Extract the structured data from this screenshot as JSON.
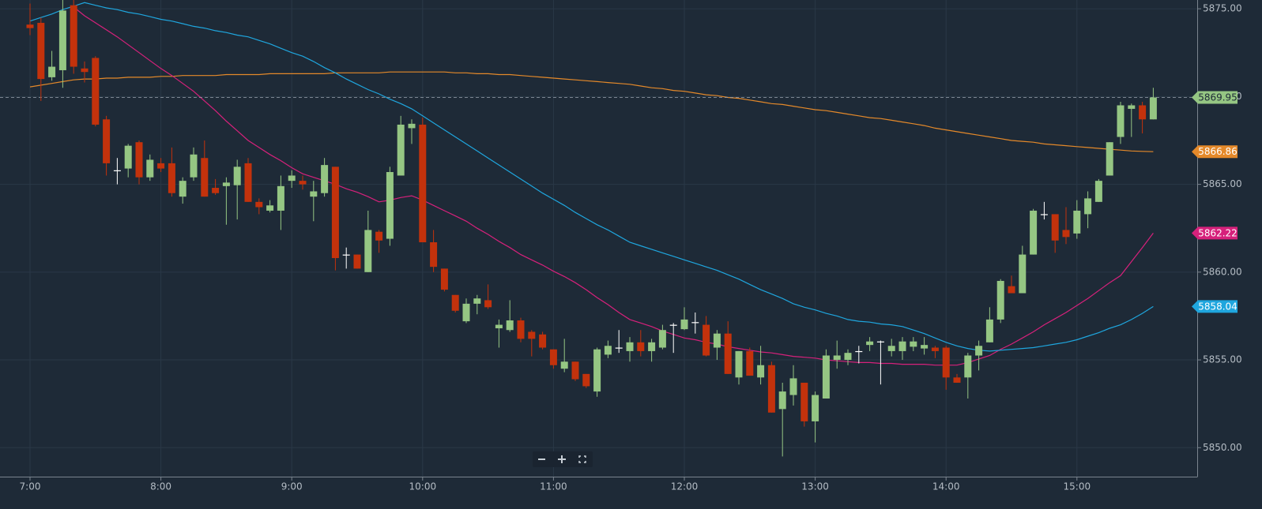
{
  "chart_data": {
    "type": "candlestick",
    "categories": [
      "7:00",
      null,
      null,
      null,
      null,
      null,
      null,
      null,
      null,
      null,
      null,
      null,
      "8:00",
      null,
      null,
      null,
      null,
      null,
      null,
      null,
      null,
      null,
      null,
      null,
      "9:00",
      null,
      null,
      null,
      null,
      null,
      null,
      null,
      null,
      null,
      null,
      null,
      "10:00",
      null,
      null,
      null,
      null,
      null,
      null,
      null,
      null,
      null,
      null,
      null,
      "11:00",
      null,
      null,
      null,
      null,
      null,
      null,
      null,
      null,
      null,
      null,
      null,
      "12:00",
      null,
      null,
      null,
      null,
      null,
      null,
      null,
      null,
      null,
      null,
      null,
      "13:00",
      null,
      null,
      null,
      null,
      null,
      null,
      null,
      null,
      null,
      null,
      null,
      "14:00",
      null,
      null,
      null,
      null,
      null,
      null,
      null,
      null,
      null,
      null,
      null,
      "15:00",
      null,
      null,
      null,
      null,
      null,
      null,
      null
    ],
    "open": [
      5874.1,
      5874.2,
      5871.1,
      5871.5,
      5875.2,
      5871.6,
      5872.2,
      5868.7,
      5865.8,
      5865.9,
      5867.4,
      5865.4,
      5866.2,
      5866.2,
      5864.3,
      5865.4,
      5866.5,
      5864.8,
      5864.9,
      5864.95,
      5866.2,
      5864.0,
      5863.5,
      5863.5,
      5865.2,
      5865.2,
      5864.3,
      5864.5,
      5866.0,
      5861.0,
      5861.0,
      5860.0,
      5862.3,
      5861.9,
      5865.5,
      5868.2,
      5868.4,
      5861.7,
      5860.2,
      5858.7,
      5857.2,
      5858.2,
      5858.4,
      5856.8,
      5856.7,
      5857.25,
      5856.6,
      5856.45,
      5855.6,
      5854.5,
      5854.9,
      5854.2,
      5853.2,
      5855.3,
      5855.7,
      5855.5,
      5856.0,
      5855.5,
      5855.7,
      5857.0,
      5856.75,
      5857.15,
      5857.0,
      5855.7,
      5856.5,
      5854.0,
      5855.5,
      5854.0,
      5854.7,
      5852.2,
      5853.0,
      5853.7,
      5851.5,
      5852.8,
      5855.0,
      5855.0,
      5855.5,
      5855.85,
      5856.05,
      5855.5,
      5855.5,
      5855.75,
      5855.65,
      5855.7,
      5855.7,
      5854.0,
      5854.0,
      5855.25,
      5856.0,
      5857.3,
      5859.2,
      5858.8,
      5861.0,
      5863.3,
      5863.3,
      5862.4,
      5862.2,
      5863.3,
      5864.0,
      5865.5,
      5867.7,
      5869.3,
      5869.5,
      5868.7
    ],
    "high": [
      5875.3,
      5874.5,
      5872.6,
      5875.5,
      5875.5,
      5872.0,
      5872.3,
      5868.9,
      5866.5,
      5867.3,
      5867.5,
      5866.7,
      5866.5,
      5867.1,
      5865.4,
      5867.1,
      5867.5,
      5865.3,
      5865.4,
      5866.4,
      5866.5,
      5864.2,
      5864.1,
      5865.5,
      5865.8,
      5865.5,
      5865.2,
      5866.5,
      5866.0,
      5861.4,
      5861.0,
      5863.5,
      5862.4,
      5866.0,
      5868.9,
      5868.7,
      5868.8,
      5862.4,
      5860.2,
      5858.7,
      5858.5,
      5858.7,
      5859.3,
      5857.3,
      5858.4,
      5857.4,
      5856.7,
      5856.6,
      5855.6,
      5856.2,
      5854.9,
      5854.2,
      5855.7,
      5856.1,
      5856.7,
      5856.3,
      5856.7,
      5856.2,
      5857.0,
      5857.1,
      5858.0,
      5857.7,
      5857.5,
      5856.7,
      5857.2,
      5855.5,
      5855.7,
      5855.8,
      5854.9,
      5853.7,
      5854.7,
      5853.7,
      5853.2,
      5855.6,
      5856.1,
      5855.6,
      5855.8,
      5856.3,
      5856.1,
      5856.2,
      5856.3,
      5856.3,
      5856.3,
      5855.8,
      5855.8,
      5854.2,
      5855.4,
      5856.1,
      5858.0,
      5859.6,
      5859.8,
      5861.5,
      5863.6,
      5864.0,
      5863.3,
      5863.7,
      5864.1,
      5864.6,
      5865.3,
      5867.4,
      5869.7,
      5869.6,
      5869.7,
      5870.5
    ],
    "low": [
      5873.5,
      5869.75,
      5870.9,
      5870.5,
      5871.3,
      5870.8,
      5868.3,
      5865.5,
      5865.0,
      5865.4,
      5865.0,
      5865.2,
      5865.7,
      5864.3,
      5863.9,
      5865.2,
      5864.3,
      5864.4,
      5862.7,
      5863.0,
      5864.0,
      5863.3,
      5863.4,
      5862.4,
      5864.8,
      5864.7,
      5862.9,
      5864.3,
      5860.1,
      5860.2,
      5860.2,
      5860.0,
      5861.1,
      5861.5,
      5865.5,
      5867.3,
      5861.7,
      5860.0,
      5858.9,
      5857.7,
      5857.1,
      5857.6,
      5857.9,
      5855.7,
      5856.6,
      5856.0,
      5855.2,
      5855.6,
      5854.5,
      5854.3,
      5853.8,
      5853.4,
      5852.9,
      5855.1,
      5855.4,
      5854.9,
      5855.2,
      5854.9,
      5855.6,
      5855.4,
      5856.7,
      5856.5,
      5855.2,
      5855.0,
      5854.2,
      5853.6,
      5854.1,
      5853.6,
      5852.0,
      5849.5,
      5852.4,
      5851.2,
      5850.3,
      5852.8,
      5854.5,
      5854.7,
      5854.8,
      5855.5,
      5853.6,
      5855.2,
      5855.0,
      5855.5,
      5855.3,
      5855.1,
      5853.3,
      5853.7,
      5852.8,
      5854.4,
      5856.0,
      5857.1,
      5858.8,
      5858.8,
      5861.0,
      5863.0,
      5861.1,
      5861.6,
      5861.9,
      5862.5,
      5864.0,
      5865.5,
      5867.3,
      5867.7,
      5867.9,
      5868.7
    ],
    "close": [
      5873.9,
      5871.0,
      5871.7,
      5874.9,
      5871.7,
      5871.4,
      5868.4,
      5866.2,
      5865.8,
      5867.2,
      5865.4,
      5866.4,
      5865.9,
      5864.5,
      5865.2,
      5866.7,
      5864.3,
      5864.5,
      5865.1,
      5866.0,
      5864.0,
      5863.7,
      5863.8,
      5864.9,
      5865.5,
      5865.0,
      5864.6,
      5866.1,
      5860.8,
      5861.0,
      5860.2,
      5862.4,
      5861.8,
      5865.7,
      5868.4,
      5868.45,
      5861.7,
      5860.3,
      5859.0,
      5857.8,
      5858.2,
      5858.5,
      5858.0,
      5857.0,
      5857.25,
      5856.2,
      5856.2,
      5855.7,
      5854.7,
      5854.9,
      5853.9,
      5853.5,
      5855.6,
      5855.8,
      5855.7,
      5856.0,
      5855.5,
      5856.0,
      5856.7,
      5857.0,
      5857.3,
      5857.15,
      5855.25,
      5856.5,
      5854.2,
      5855.5,
      5854.1,
      5854.7,
      5852.0,
      5853.2,
      5853.95,
      5851.5,
      5853.0,
      5855.25,
      5855.25,
      5855.4,
      5855.5,
      5856.05,
      5856.05,
      5855.8,
      5856.05,
      5856.05,
      5855.85,
      5855.5,
      5854.0,
      5853.7,
      5855.25,
      5855.8,
      5857.3,
      5859.5,
      5858.8,
      5861.0,
      5863.5,
      5863.3,
      5861.8,
      5862.0,
      5863.5,
      5864.2,
      5865.2,
      5867.4,
      5869.5,
      5869.5,
      5868.7,
      5869.95
    ],
    "up_color": "#95c683",
    "down_color": "#c3320c",
    "flat_color": "#ffffff",
    "series": [
      {
        "color": "#e4892a",
        "values": [
          5870.55,
          5870.65,
          5870.75,
          5870.85,
          5870.95,
          5871.0,
          5871.0,
          5871.05,
          5871.05,
          5871.1,
          5871.1,
          5871.1,
          5871.15,
          5871.15,
          5871.2,
          5871.2,
          5871.2,
          5871.2,
          5871.25,
          5871.25,
          5871.25,
          5871.25,
          5871.3,
          5871.3,
          5871.3,
          5871.3,
          5871.3,
          5871.3,
          5871.35,
          5871.35,
          5871.35,
          5871.35,
          5871.35,
          5871.4,
          5871.4,
          5871.4,
          5871.4,
          5871.4,
          5871.4,
          5871.35,
          5871.35,
          5871.3,
          5871.3,
          5871.25,
          5871.25,
          5871.2,
          5871.15,
          5871.1,
          5871.05,
          5871.0,
          5870.95,
          5870.9,
          5870.85,
          5870.8,
          5870.75,
          5870.7,
          5870.6,
          5870.5,
          5870.45,
          5870.35,
          5870.3,
          5870.2,
          5870.1,
          5870.05,
          5869.95,
          5869.9,
          5869.8,
          5869.7,
          5869.6,
          5869.55,
          5869.45,
          5869.35,
          5869.25,
          5869.2,
          5869.1,
          5869.0,
          5868.9,
          5868.8,
          5868.75,
          5868.65,
          5868.55,
          5868.45,
          5868.35,
          5868.2,
          5868.1,
          5868.0,
          5867.9,
          5867.8,
          5867.7,
          5867.6,
          5867.5,
          5867.45,
          5867.4,
          5867.3,
          5867.25,
          5867.2,
          5867.15,
          5867.1,
          5867.05,
          5867.0,
          5866.95,
          5866.9,
          5866.88,
          5866.86
        ]
      },
      {
        "color": "#d6217b",
        "values": [
          null,
          null,
          null,
          null,
          5875.1,
          5874.6,
          5874.2,
          5873.8,
          5873.4,
          5872.95,
          5872.5,
          5872.05,
          5871.6,
          5871.2,
          5870.75,
          5870.3,
          5869.75,
          5869.2,
          5868.6,
          5868.05,
          5867.5,
          5867.1,
          5866.7,
          5866.35,
          5865.95,
          5865.6,
          5865.4,
          5865.2,
          5865.0,
          5864.75,
          5864.55,
          5864.3,
          5864.0,
          5864.1,
          5864.25,
          5864.35,
          5864.1,
          5863.8,
          5863.5,
          5863.2,
          5862.9,
          5862.5,
          5862.15,
          5861.75,
          5861.4,
          5861.0,
          5860.7,
          5860.4,
          5860.05,
          5859.75,
          5859.4,
          5859.0,
          5858.55,
          5858.15,
          5857.7,
          5857.3,
          5857.1,
          5856.9,
          5856.65,
          5856.45,
          5856.25,
          5856.15,
          5856.0,
          5855.9,
          5855.75,
          5855.65,
          5855.55,
          5855.45,
          5855.4,
          5855.3,
          5855.2,
          5855.15,
          5855.1,
          5855.0,
          5854.95,
          5854.9,
          5854.85,
          5854.85,
          5854.8,
          5854.8,
          5854.75,
          5854.75,
          5854.75,
          5854.7,
          5854.7,
          5854.7,
          5854.85,
          5855.05,
          5855.25,
          5855.6,
          5855.9,
          5856.25,
          5856.6,
          5857.0,
          5857.35,
          5857.7,
          5858.1,
          5858.5,
          5858.95,
          5859.4,
          5859.8,
          5860.6,
          5861.4,
          5862.22
        ]
      },
      {
        "color": "#1fa6de",
        "values": [
          5874.3,
          5874.5,
          5874.7,
          5874.95,
          5875.15,
          5875.35,
          5875.2,
          5875.05,
          5874.95,
          5874.8,
          5874.7,
          5874.55,
          5874.4,
          5874.3,
          5874.15,
          5874.0,
          5873.9,
          5873.75,
          5873.65,
          5873.5,
          5873.4,
          5873.2,
          5873.0,
          5872.75,
          5872.5,
          5872.3,
          5872.0,
          5871.65,
          5871.35,
          5871.0,
          5870.7,
          5870.4,
          5870.15,
          5869.85,
          5869.6,
          5869.3,
          5868.9,
          5868.5,
          5868.1,
          5867.7,
          5867.3,
          5866.9,
          5866.5,
          5866.1,
          5865.7,
          5865.3,
          5864.9,
          5864.5,
          5864.15,
          5863.8,
          5863.4,
          5863.05,
          5862.7,
          5862.4,
          5862.05,
          5861.7,
          5861.5,
          5861.3,
          5861.1,
          5860.9,
          5860.7,
          5860.5,
          5860.3,
          5860.1,
          5859.85,
          5859.6,
          5859.3,
          5859.0,
          5858.75,
          5858.5,
          5858.2,
          5858.0,
          5857.85,
          5857.65,
          5857.5,
          5857.3,
          5857.2,
          5857.15,
          5857.05,
          5857.0,
          5856.9,
          5856.7,
          5856.5,
          5856.25,
          5856.0,
          5855.8,
          5855.65,
          5855.55,
          5855.5,
          5855.55,
          5855.6,
          5855.65,
          5855.7,
          5855.8,
          5855.9,
          5856.0,
          5856.15,
          5856.35,
          5856.55,
          5856.8,
          5857.0,
          5857.3,
          5857.65,
          5858.04
        ]
      }
    ],
    "ylim": [
      5848.35,
      5875.5
    ],
    "yticks": [
      {
        "value": 5850,
        "label": "5850.00"
      },
      {
        "value": 5855,
        "label": "5855.00"
      },
      {
        "value": 5860,
        "label": "5860.00"
      },
      {
        "value": 5865,
        "label": "5865.00"
      },
      {
        "value": 5870,
        "label": "5870.00"
      },
      {
        "value": 5875,
        "label": "5875.00"
      }
    ],
    "grid": true
  }
}
